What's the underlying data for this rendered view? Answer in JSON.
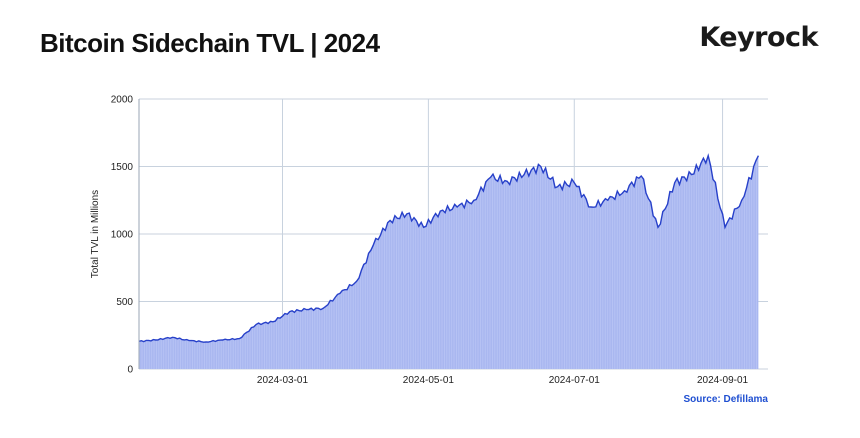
{
  "header": {
    "title": "Bitcoin Sidechain TVL | 2024",
    "brand": "Keyrock"
  },
  "footer": {
    "source": "Source: Defillama"
  },
  "chart_data": {
    "type": "area",
    "title": "Bitcoin Sidechain TVL | 2024",
    "xlabel": "",
    "ylabel": "Total TVL in Millions",
    "ylim": [
      0,
      2000
    ],
    "yticks": [
      "0",
      "500",
      "1000",
      "1500",
      "2000"
    ],
    "xticks": [
      "2024-03-01",
      "2024-05-01",
      "2024-07-01",
      "2024-09-01"
    ],
    "grid": true,
    "colors": {
      "line": "#2740c9",
      "fill": "#aab8f2",
      "grid": "#c8d2de"
    },
    "series": [
      {
        "x": [
          "2024-01-01",
          "2024-01-08",
          "2024-01-15",
          "2024-01-22",
          "2024-01-29",
          "2024-02-05",
          "2024-02-12",
          "2024-02-19",
          "2024-02-26",
          "2024-03-04",
          "2024-03-11",
          "2024-03-18",
          "2024-03-25",
          "2024-04-01",
          "2024-04-08",
          "2024-04-15",
          "2024-04-22",
          "2024-04-29",
          "2024-05-06",
          "2024-05-13",
          "2024-05-20",
          "2024-05-27",
          "2024-06-03",
          "2024-06-10",
          "2024-06-17",
          "2024-06-24",
          "2024-07-01",
          "2024-07-08",
          "2024-07-15",
          "2024-07-22",
          "2024-07-29",
          "2024-08-05",
          "2024-08-12",
          "2024-08-19",
          "2024-08-26",
          "2024-09-02",
          "2024-09-09",
          "2024-09-16"
        ],
        "values": [
          205,
          215,
          235,
          210,
          200,
          215,
          225,
          330,
          350,
          425,
          440,
          450,
          560,
          650,
          920,
          1100,
          1150,
          1050,
          1170,
          1200,
          1250,
          1420,
          1390,
          1440,
          1500,
          1350,
          1380,
          1200,
          1250,
          1320,
          1430,
          1050,
          1380,
          1440,
          1580,
          1050,
          1250,
          1580
        ]
      }
    ]
  }
}
